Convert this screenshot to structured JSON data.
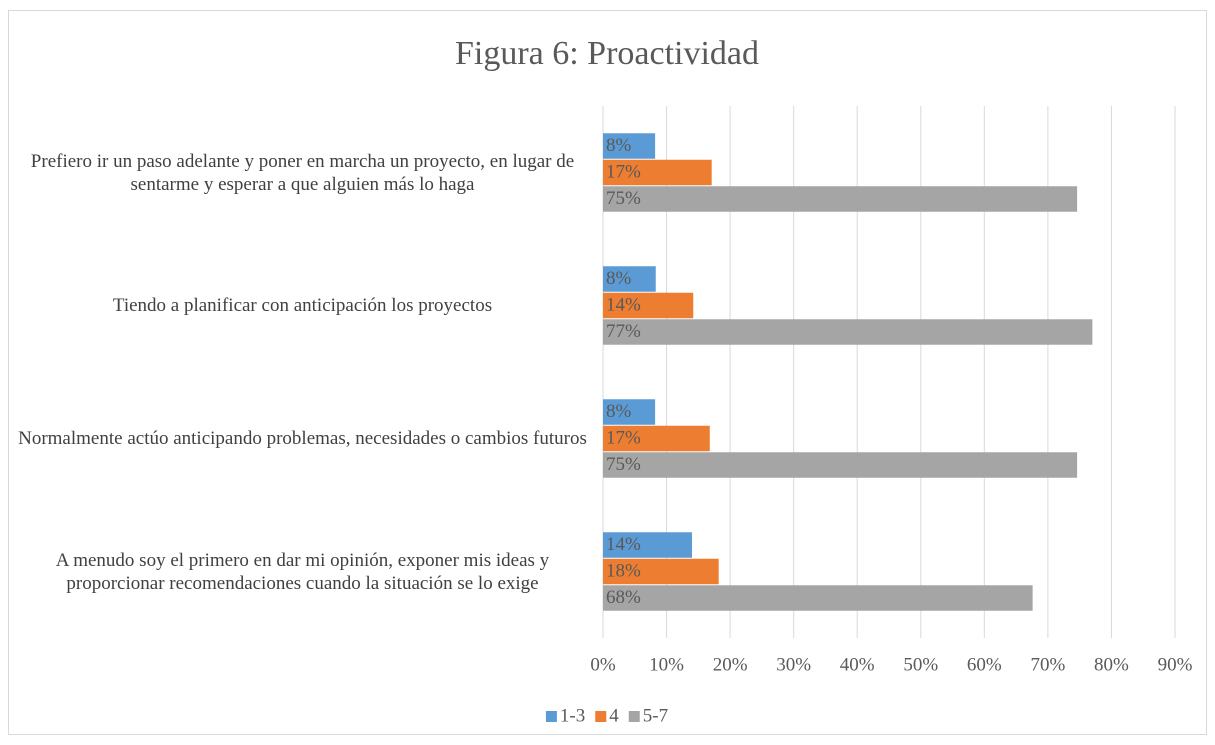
{
  "chart_data": {
    "type": "bar",
    "orientation": "horizontal",
    "title": "Figura 6: Proactividad",
    "categories": [
      "Prefiero ir un paso adelante y poner en marcha un proyecto, en lugar de sentarme y esperar a que alguien más lo haga",
      "Tiendo a planificar con anticipación los proyectos",
      "Normalmente actúo anticipando problemas, necesidades o cambios futuros",
      "A menudo soy el primero en dar mi opinión, exponer mis ideas y proporcionar recomendaciones cuando la situación se lo exige"
    ],
    "series": [
      {
        "name": "1-3",
        "color": "#5b9bd5",
        "values": [
          8.2,
          8.3,
          8.2,
          14.0
        ],
        "value_labels": [
          "8%",
          "8%",
          "8%",
          "14%"
        ]
      },
      {
        "name": "4",
        "color": "#ed7d31",
        "values": [
          17.1,
          14.2,
          16.8,
          18.2
        ],
        "value_labels": [
          "17%",
          "14%",
          "17%",
          "18%"
        ]
      },
      {
        "name": "5-7",
        "color": "#a5a5a5",
        "values": [
          74.6,
          77.0,
          74.6,
          67.6
        ],
        "value_labels": [
          "75%",
          "77%",
          "75%",
          "68%"
        ]
      }
    ],
    "xlim": [
      0,
      90
    ],
    "xticks": [
      {
        "value": 0,
        "label": "0%"
      },
      {
        "value": 10,
        "label": "10%"
      },
      {
        "value": 20,
        "label": "20%"
      },
      {
        "value": 30,
        "label": "30%"
      },
      {
        "value": 40,
        "label": "40%"
      },
      {
        "value": 50,
        "label": "50%"
      },
      {
        "value": 60,
        "label": "60%"
      },
      {
        "value": 70,
        "label": "70%"
      },
      {
        "value": 80,
        "label": "80%"
      },
      {
        "value": 90,
        "label": "90%"
      }
    ],
    "grid": true,
    "legend": "bottom"
  }
}
